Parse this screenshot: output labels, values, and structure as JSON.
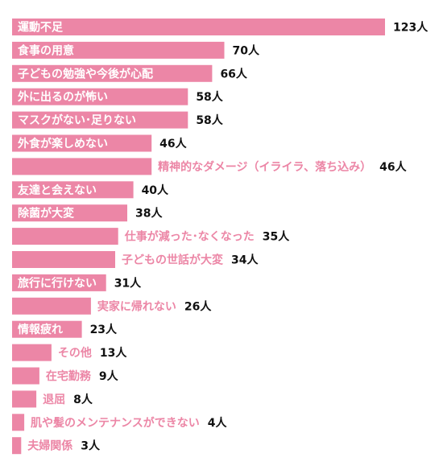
{
  "chart_data": {
    "type": "bar",
    "orientation": "horizontal",
    "title": "",
    "xlabel": "",
    "ylabel": "",
    "unit": "人",
    "xlim": [
      0,
      123
    ],
    "grid": false,
    "legend": "none",
    "colors": {
      "bar": "#ec86a6",
      "label_inside": "#ffffff",
      "label_outside": "#ec86a6",
      "value": "#111111"
    },
    "categories": [
      "運動不足",
      "食事の用意",
      "子どもの勉強や今後が心配",
      "外に出るのが怖い",
      "マスクがない･足りない",
      "外食が楽しめない",
      "精神的なダメージ（イライラ、落ち込み）",
      "友達と会えない",
      "除菌が大変",
      "仕事が減った･なくなった",
      "子どもの世話が大変",
      "旅行に行けない",
      "実家に帰れない",
      "情報疲れ",
      "その他",
      "在宅勤務",
      "退屈",
      "肌や髪のメンテナンスができない",
      "夫婦関係"
    ],
    "values": [
      123,
      70,
      66,
      58,
      58,
      46,
      46,
      40,
      38,
      35,
      34,
      31,
      26,
      23,
      13,
      9,
      8,
      4,
      3
    ],
    "value_labels": [
      "123人",
      "70人",
      "66人",
      "58人",
      "58人",
      "46人",
      "46人",
      "40人",
      "38人",
      "35人",
      "34人",
      "31人",
      "26人",
      "23人",
      "13人",
      "9人",
      "8人",
      "4人",
      "3人"
    ]
  }
}
